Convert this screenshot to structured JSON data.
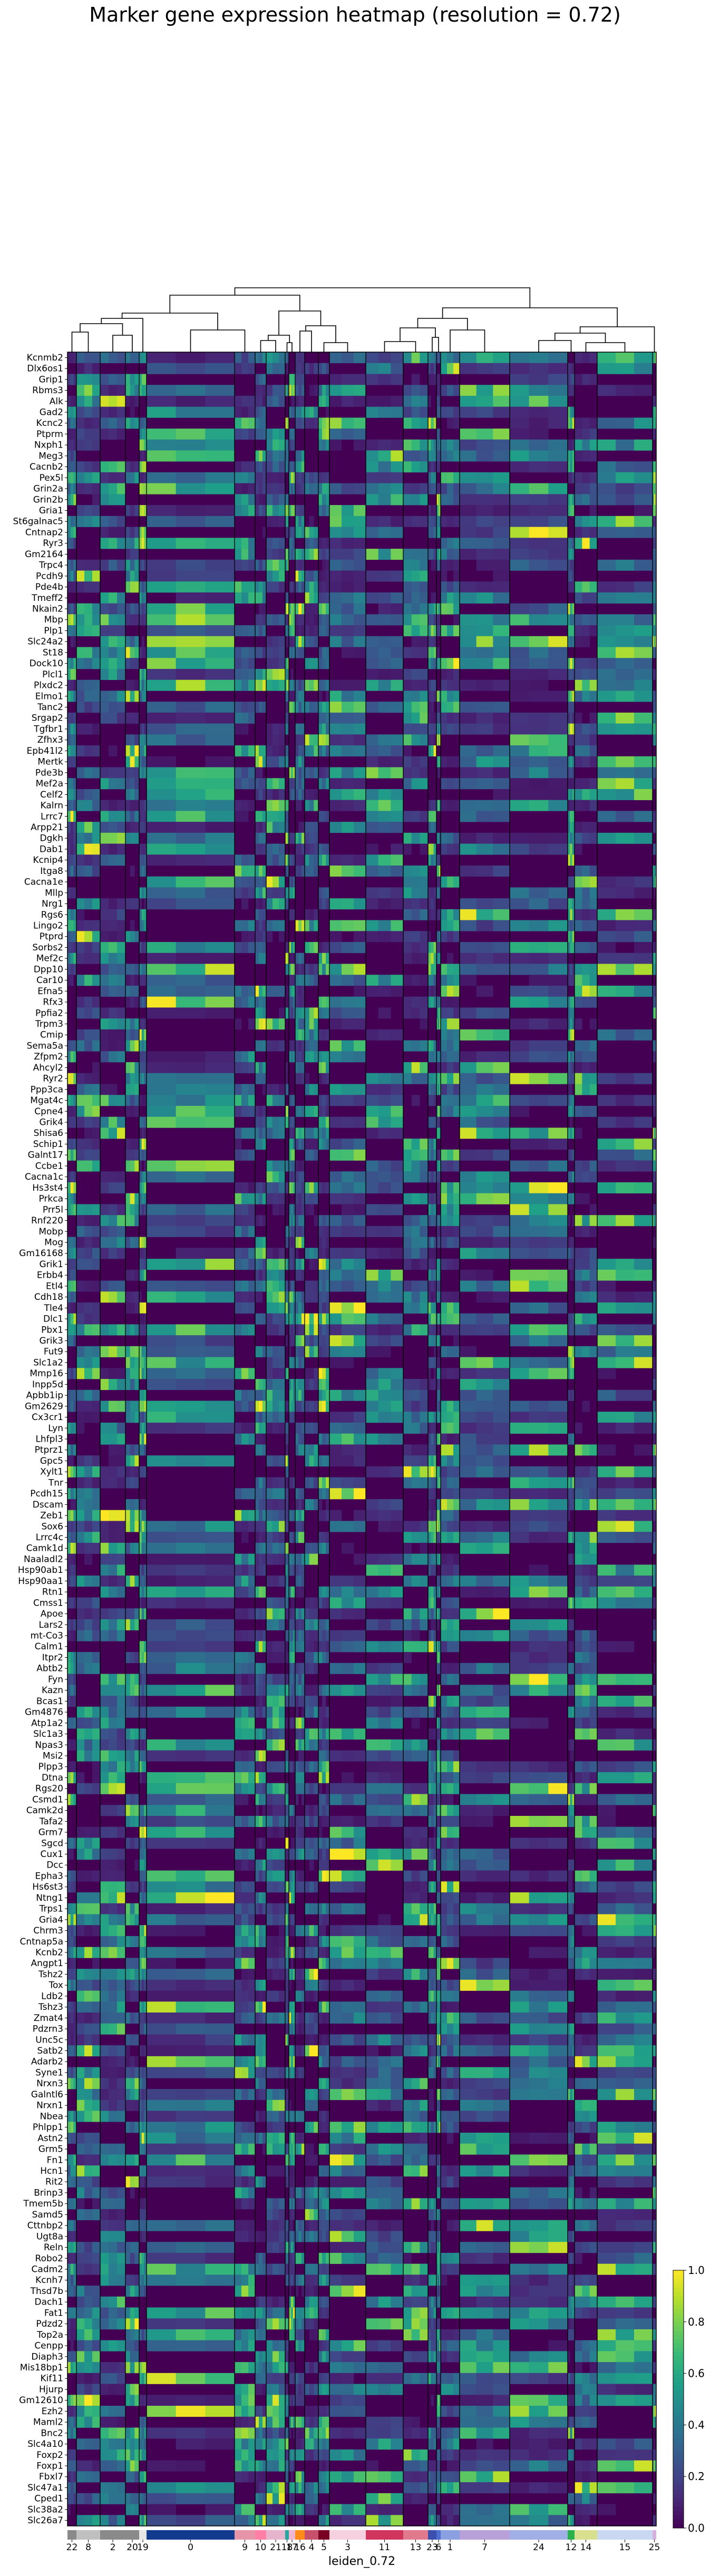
{
  "title": "Marker gene expression heatmap (resolution = 0.72)",
  "chart_data": {
    "type": "heatmap",
    "xlabel": "leiden_0.72",
    "colorbar": {
      "min": 0.0,
      "max": 1.0,
      "ticks": [
        "0.0",
        "0.2",
        "0.4",
        "0.6",
        "0.8",
        "1.0"
      ],
      "colormap": "viridis"
    },
    "clusters": [
      "22",
      "8",
      "2",
      "20",
      "19",
      "0",
      "9",
      "10",
      "21",
      "18",
      "17",
      "16",
      "4",
      "5",
      "3",
      "11",
      "13",
      "23",
      "6",
      "1",
      "7",
      "24",
      "12",
      "14",
      "15",
      "25"
    ],
    "cluster_colors": [
      "#8a8a8a",
      "#bfbfbf",
      "#8a8a8a",
      "#8a8a8a",
      "#e6e6e6",
      "#123a8e",
      "#e694a8",
      "#ff7fa6",
      "#e6b4cc",
      "#2aa6a0",
      "#f0b5d0",
      "#ff8c1a",
      "#c7506b",
      "#7a0024",
      "#f5d0de",
      "#d0355e",
      "#e07a8c",
      "#3c4fae",
      "#4f6fd0",
      "#8aa0e0",
      "#b8a0d8",
      "#a0b0e6",
      "#2ab24a",
      "#d8e090",
      "#c8d8f0",
      "#d6b0e0"
    ],
    "genes": [
      "Kcnmb2",
      "Dlx6os1",
      "Grip1",
      "Rbms3",
      "Alk",
      "Gad2",
      "Kcnc2",
      "Ptprm",
      "Nxph1",
      "Meg3",
      "Cacnb2",
      "Pex5l",
      "Grin2a",
      "Grin2b",
      "Gria1",
      "St6galnac5",
      "Cntnap2",
      "Ryr3",
      "Gm2164",
      "Trpc4",
      "Pcdh9",
      "Pde4b",
      "Tmeff2",
      "Nkain2",
      "Mbp",
      "Plp1",
      "Slc24a2",
      "St18",
      "Dock10",
      "Plcl1",
      "Plxdc2",
      "Elmo1",
      "Tanc2",
      "Srgap2",
      "Tgfbr1",
      "Zfhx3",
      "Epb41l2",
      "Mertk",
      "Pde3b",
      "Mef2a",
      "Celf2",
      "Kalrn",
      "Lrrc7",
      "Arpp21",
      "Dgkh",
      "Dab1",
      "Kcnip4",
      "Itga8",
      "Cacna1e",
      "Mllp",
      "Nrg1",
      "Rgs6",
      "Lingo2",
      "Ptprd",
      "Sorbs2",
      "Mef2c",
      "Dpp10",
      "Car10",
      "Efna5",
      "Rfx3",
      "Ppfia2",
      "Trpm3",
      "Cmip",
      "Sema5a",
      "Zfpm2",
      "Ahcyl2",
      "Ryr2",
      "Ppp3ca",
      "Mgat4c",
      "Cpne4",
      "Grik4",
      "Shisa6",
      "Schip1",
      "Galnt17",
      "Ccbe1",
      "Cacna1c",
      "Hs3st4",
      "Prkca",
      "Prr5l",
      "Rnf220",
      "Mobp",
      "Mog",
      "Gm16168",
      "Grik1",
      "Erbb4",
      "Etl4",
      "Cdh18",
      "Tle4",
      "Dlc1",
      "Pbx1",
      "Grik3",
      "Fut9",
      "Slc1a2",
      "Mmp16",
      "Inpp5d",
      "Apbb1ip",
      "Gm2629",
      "Cx3cr1",
      "Lyn",
      "Lhfpl3",
      "Ptprz1",
      "Gpc5",
      "Xylt1",
      "Tnr",
      "Pcdh15",
      "Dscam",
      "Zeb1",
      "Sox6",
      "Lrrc4c",
      "Camk1d",
      "Naaladl2",
      "Hsp90ab1",
      "Hsp90aa1",
      "Rtn1",
      "Cmss1",
      "Apoe",
      "Lars2",
      "mt-Co3",
      "Calm1",
      "Itpr2",
      "Abtb2",
      "Fyn",
      "Kazn",
      "Bcas1",
      "Gm4876",
      "Atp1a2",
      "Slc1a3",
      "Npas3",
      "Msi2",
      "Plpp3",
      "Dtna",
      "Rgs20",
      "Csmd1",
      "Camk2d",
      "Tafa2",
      "Grm7",
      "Sgcd",
      "Cux1",
      "Dcc",
      "Epha3",
      "Hs6st3",
      "Ntng1",
      "Trps1",
      "Gria4",
      "Chrm3",
      "Cntnap5a",
      "Kcnb2",
      "Angpt1",
      "Tshz2",
      "Tox",
      "Ldb2",
      "Tshz3",
      "Zmat4",
      "Pdzrn3",
      "Unc5c",
      "Satb2",
      "Adarb2",
      "Syne1",
      "Nrxn3",
      "Galntl6",
      "Nrxn1",
      "Nbea",
      "Phlpp1",
      "Astn2",
      "Grm5",
      "Fn1",
      "Hcn1",
      "Rit2",
      "Brinp3",
      "Tmem5b",
      "Samd5",
      "Cttnbp2",
      "Ugt8a",
      "Reln",
      "Robo2",
      "Cadm2",
      "Kcnh7",
      "Thsd7b",
      "Dach1",
      "Fat1",
      "Pdzd2",
      "Top2a",
      "Cenpp",
      "Diaph3",
      "Mis18bp1",
      "Kif11",
      "Hjurp",
      "Gm12610",
      "Ezh2",
      "Maml2",
      "Bnc2",
      "Slc4a10",
      "Foxp2",
      "Foxp1",
      "Fbxl7",
      "Slc47a1",
      "Cped1",
      "Slc38a2",
      "Slc26a7"
    ]
  }
}
